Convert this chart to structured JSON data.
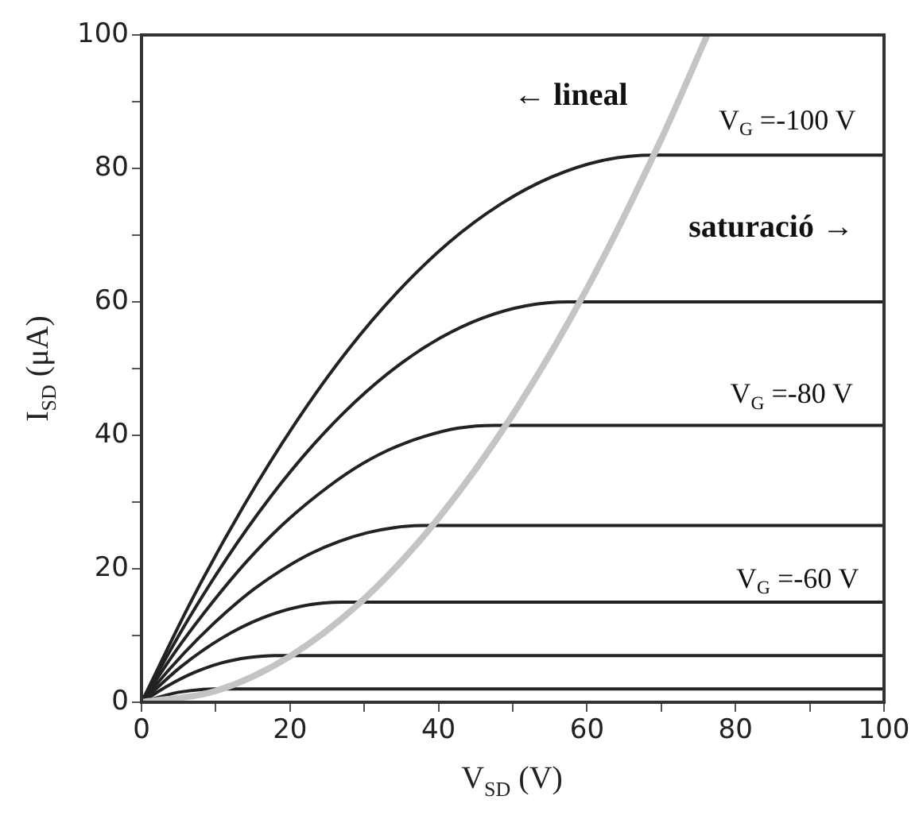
{
  "chart_data": {
    "type": "line",
    "xlabel": "V$_{SD}$ (V)",
    "ylabel": "I$_{SD}$ (μA)",
    "xlim": [
      0,
      100
    ],
    "ylim": [
      0,
      100
    ],
    "xticks": [
      0,
      {
        "value": 10,
        "label": null
      },
      20,
      {
        "value": 30,
        "label": null
      },
      40,
      {
        "value": 50,
        "label": null
      },
      60,
      {
        "value": 70,
        "label": null
      },
      80,
      {
        "value": 90,
        "label": null
      },
      100
    ],
    "yticks": [
      0,
      {
        "value": 10,
        "label": null
      },
      20,
      {
        "value": 30,
        "label": null
      },
      40,
      {
        "value": 50,
        "label": null
      },
      60,
      {
        "value": 70,
        "label": null
      },
      80,
      {
        "value": 90,
        "label": null
      },
      100
    ],
    "grid": false,
    "legend": false,
    "marker": "none",
    "line_style": "solid",
    "series": [
      {
        "color": "#c4c4c4",
        "x": [
          0,
          10,
          20,
          30,
          40,
          50,
          60,
          70,
          76.2
        ],
        "values": [
          0,
          1.7,
          6.9,
          15.5,
          27.6,
          43.1,
          62,
          84.4,
          100
        ]
      },
      {
        "color": "#222222",
        "x": [
          0,
          6.9,
          13.8,
          20.7,
          27.6,
          34.5,
          41.4,
          48.3,
          55.2,
          62.1,
          69,
          100
        ],
        "values": [
          0,
          15.6,
          29.5,
          41.8,
          52.5,
          61.5,
          68.9,
          74.6,
          78.7,
          81.2,
          82,
          82
        ]
      },
      {
        "color": "#222222",
        "x": [
          0,
          5.75,
          11.5,
          17.25,
          23,
          28.75,
          34.5,
          40.25,
          46,
          51.75,
          57.5,
          100
        ],
        "values": [
          0,
          11.4,
          21.6,
          30.6,
          38.4,
          45,
          50.4,
          54.6,
          57.6,
          59.4,
          60,
          60
        ]
      },
      {
        "color": "#222222",
        "x": [
          0,
          4.75,
          9.5,
          14.25,
          19,
          23.75,
          28.5,
          33.25,
          38,
          42.75,
          47.5,
          100
        ],
        "values": [
          0,
          7.9,
          14.9,
          21.2,
          26.6,
          31.1,
          34.9,
          37.8,
          39.8,
          41.1,
          41.5,
          41.5
        ]
      },
      {
        "color": "#222222",
        "x": [
          0,
          3.8,
          7.6,
          11.4,
          15.2,
          19,
          22.8,
          26.6,
          30.4,
          34.2,
          38,
          100
        ],
        "values": [
          0,
          5,
          9.5,
          13.5,
          17,
          19.9,
          22.3,
          24.1,
          25.4,
          26.2,
          26.5,
          26.5
        ]
      },
      {
        "color": "#222222",
        "x": [
          0,
          5.4,
          10.8,
          16.2,
          21.6,
          27,
          100
        ],
        "values": [
          0,
          5.4,
          9.6,
          12.6,
          14.4,
          15,
          15
        ]
      },
      {
        "color": "#222222",
        "x": [
          0,
          3.6,
          7.2,
          10.8,
          14.4,
          18,
          100
        ],
        "values": [
          0,
          2.5,
          4.5,
          5.9,
          6.7,
          7,
          7
        ]
      },
      {
        "color": "#222222",
        "x": [
          0,
          5,
          10,
          100
        ],
        "values": [
          0,
          1.5,
          2,
          2
        ]
      }
    ],
    "annotations": [
      "← lineal",
      "saturació →",
      "V$_{G}$ =-100 V",
      "V$_{G}$ =-80 V",
      "V$_{G}$ =-60 V"
    ]
  }
}
